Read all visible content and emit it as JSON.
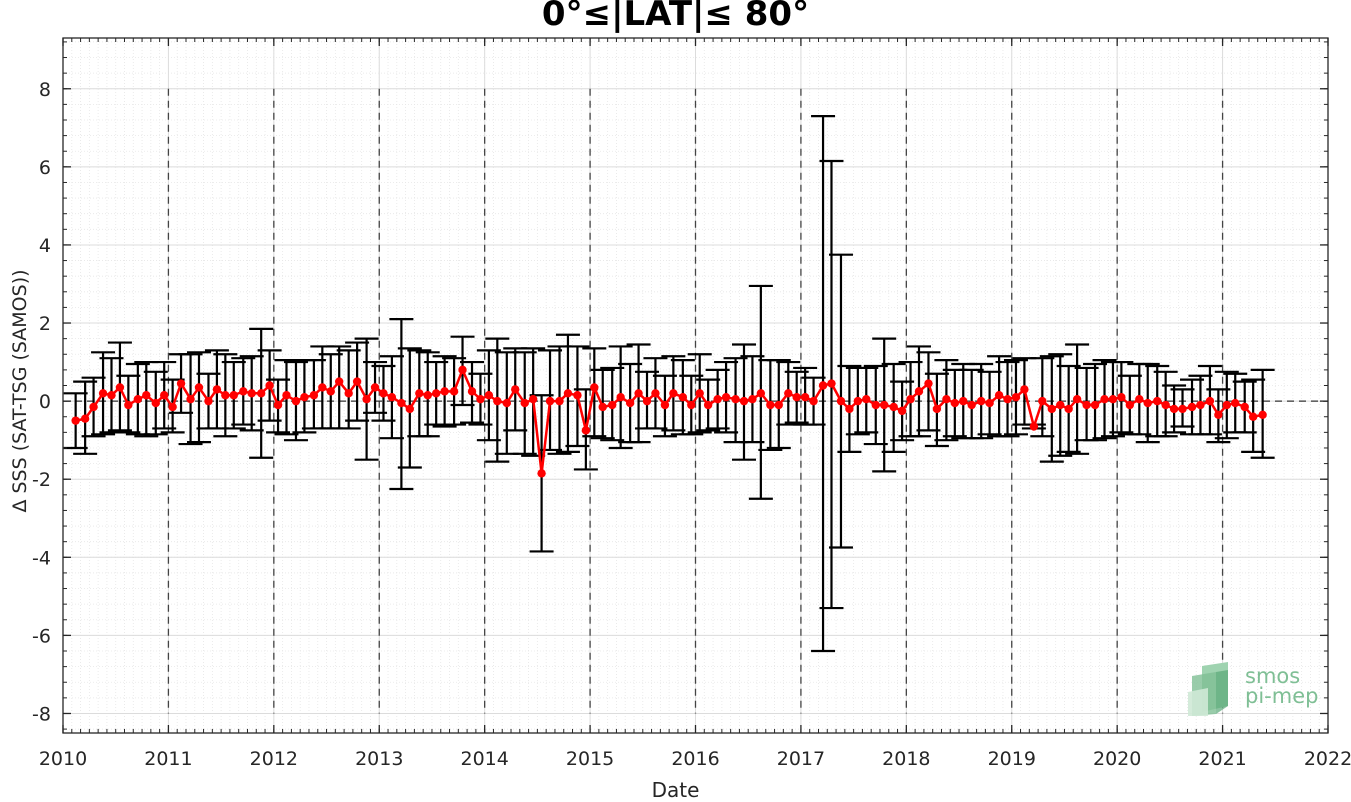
{
  "chart_data": {
    "type": "line",
    "title": "0°≤|LAT|≤ 80°",
    "xlabel": "Date",
    "ylabel": "Δ SSS (SAT-TSG (SAMOS))",
    "xlim": [
      2010,
      2022
    ],
    "ylim": [
      -8.5,
      9.3
    ],
    "xticks": [
      "2010",
      "2011",
      "2012",
      "2013",
      "2014",
      "2015",
      "2016",
      "2017",
      "2018",
      "2019",
      "2020",
      "2021",
      "2022"
    ],
    "yticks": [
      "-8",
      "-6",
      "-4",
      "-2",
      "0",
      "2",
      "4",
      "6",
      "8"
    ],
    "grid": true,
    "minor_grid": true,
    "vertical_year_lines": [
      2011,
      2012,
      2013,
      2014,
      2015,
      2016,
      2017,
      2018,
      2019,
      2020,
      2021
    ],
    "zero_line": true,
    "series": [
      {
        "color": "#ff0000",
        "errorbar_color": "#000000",
        "points": [
          {
            "x": 2010.12,
            "y": -0.5,
            "lo": -1.2,
            "hi": 0.2
          },
          {
            "x": 2010.21,
            "y": -0.45,
            "lo": -1.35,
            "hi": 0.5
          },
          {
            "x": 2010.29,
            "y": -0.15,
            "lo": -0.9,
            "hi": 0.6
          },
          {
            "x": 2010.38,
            "y": 0.2,
            "lo": -0.85,
            "hi": 1.25
          },
          {
            "x": 2010.46,
            "y": 0.15,
            "lo": -0.8,
            "hi": 1.1
          },
          {
            "x": 2010.54,
            "y": 0.35,
            "lo": -0.75,
            "hi": 1.5
          },
          {
            "x": 2010.62,
            "y": -0.1,
            "lo": -0.8,
            "hi": 0.65
          },
          {
            "x": 2010.71,
            "y": 0.05,
            "lo": -0.85,
            "hi": 0.95
          },
          {
            "x": 2010.79,
            "y": 0.15,
            "lo": -0.9,
            "hi": 1.0
          },
          {
            "x": 2010.88,
            "y": -0.05,
            "lo": -0.85,
            "hi": 0.75
          },
          {
            "x": 2010.96,
            "y": 0.15,
            "lo": -0.7,
            "hi": 1.0
          },
          {
            "x": 2011.04,
            "y": -0.15,
            "lo": -0.8,
            "hi": 0.55
          },
          {
            "x": 2011.12,
            "y": 0.45,
            "lo": -0.3,
            "hi": 1.2
          },
          {
            "x": 2011.21,
            "y": 0.05,
            "lo": -1.1,
            "hi": 1.2
          },
          {
            "x": 2011.29,
            "y": 0.35,
            "lo": -1.05,
            "hi": 1.25
          },
          {
            "x": 2011.38,
            "y": 0.0,
            "lo": -0.7,
            "hi": 0.7
          },
          {
            "x": 2011.46,
            "y": 0.3,
            "lo": -0.7,
            "hi": 1.3
          },
          {
            "x": 2011.54,
            "y": 0.15,
            "lo": -0.9,
            "hi": 1.2
          },
          {
            "x": 2011.62,
            "y": 0.15,
            "lo": -0.7,
            "hi": 1.0
          },
          {
            "x": 2011.71,
            "y": 0.25,
            "lo": -0.6,
            "hi": 1.1
          },
          {
            "x": 2011.79,
            "y": 0.2,
            "lo": -0.75,
            "hi": 1.15
          },
          {
            "x": 2011.88,
            "y": 0.2,
            "lo": -1.45,
            "hi": 1.85
          },
          {
            "x": 2011.96,
            "y": 0.4,
            "lo": -0.5,
            "hi": 1.3
          },
          {
            "x": 2012.04,
            "y": -0.1,
            "lo": -0.8,
            "hi": 0.55
          },
          {
            "x": 2012.12,
            "y": 0.15,
            "lo": -0.85,
            "hi": 1.05
          },
          {
            "x": 2012.21,
            "y": 0.0,
            "lo": -1.0,
            "hi": 1.0
          },
          {
            "x": 2012.29,
            "y": 0.1,
            "lo": -0.8,
            "hi": 1.05
          },
          {
            "x": 2012.38,
            "y": 0.15,
            "lo": -0.7,
            "hi": 1.05
          },
          {
            "x": 2012.46,
            "y": 0.35,
            "lo": -0.7,
            "hi": 1.4
          },
          {
            "x": 2012.54,
            "y": 0.25,
            "lo": -0.7,
            "hi": 1.2
          },
          {
            "x": 2012.62,
            "y": 0.5,
            "lo": -0.7,
            "hi": 1.4
          },
          {
            "x": 2012.71,
            "y": 0.2,
            "lo": -0.7,
            "hi": 1.3
          },
          {
            "x": 2012.79,
            "y": 0.5,
            "lo": -0.5,
            "hi": 1.5
          },
          {
            "x": 2012.88,
            "y": 0.05,
            "lo": -1.5,
            "hi": 1.6
          },
          {
            "x": 2012.96,
            "y": 0.35,
            "lo": -0.3,
            "hi": 1.0
          },
          {
            "x": 2013.04,
            "y": 0.2,
            "lo": -0.5,
            "hi": 0.9
          },
          {
            "x": 2013.12,
            "y": 0.1,
            "lo": -0.95,
            "hi": 1.15
          },
          {
            "x": 2013.21,
            "y": -0.05,
            "lo": -2.25,
            "hi": 2.1
          },
          {
            "x": 2013.29,
            "y": -0.2,
            "lo": -1.7,
            "hi": 1.35
          },
          {
            "x": 2013.38,
            "y": 0.2,
            "lo": -0.9,
            "hi": 1.3
          },
          {
            "x": 2013.46,
            "y": 0.15,
            "lo": -0.9,
            "hi": 1.25
          },
          {
            "x": 2013.54,
            "y": 0.2,
            "lo": -0.6,
            "hi": 1.0
          },
          {
            "x": 2013.62,
            "y": 0.25,
            "lo": -0.65,
            "hi": 1.15
          },
          {
            "x": 2013.71,
            "y": 0.25,
            "lo": -0.6,
            "hi": 1.1
          },
          {
            "x": 2013.79,
            "y": 0.8,
            "lo": -0.1,
            "hi": 1.65
          },
          {
            "x": 2013.88,
            "y": 0.25,
            "lo": -0.55,
            "hi": 1.0
          },
          {
            "x": 2013.96,
            "y": 0.05,
            "lo": -0.6,
            "hi": 0.7
          },
          {
            "x": 2014.04,
            "y": 0.15,
            "lo": -1.0,
            "hi": 1.3
          },
          {
            "x": 2014.12,
            "y": 0.0,
            "lo": -1.55,
            "hi": 1.6
          },
          {
            "x": 2014.21,
            "y": -0.05,
            "lo": -1.35,
            "hi": 1.25
          },
          {
            "x": 2014.29,
            "y": 0.3,
            "lo": -0.75,
            "hi": 1.35
          },
          {
            "x": 2014.38,
            "y": -0.05,
            "lo": -1.35,
            "hi": 1.25
          },
          {
            "x": 2014.46,
            "y": 0.05,
            "lo": -1.4,
            "hi": 1.35
          },
          {
            "x": 2014.54,
            "y": -1.85,
            "lo": -3.85,
            "hi": 0.15
          },
          {
            "x": 2014.62,
            "y": 0.0,
            "lo": -1.25,
            "hi": 1.3
          },
          {
            "x": 2014.71,
            "y": 0.0,
            "lo": -1.35,
            "hi": 1.4
          },
          {
            "x": 2014.79,
            "y": 0.2,
            "lo": -1.3,
            "hi": 1.7
          },
          {
            "x": 2014.88,
            "y": 0.15,
            "lo": -1.15,
            "hi": 1.4
          },
          {
            "x": 2014.96,
            "y": -0.75,
            "lo": -1.75,
            "hi": 0.3
          },
          {
            "x": 2015.04,
            "y": 0.35,
            "lo": -0.9,
            "hi": 1.35
          },
          {
            "x": 2015.12,
            "y": -0.15,
            "lo": -0.95,
            "hi": 0.8
          },
          {
            "x": 2015.21,
            "y": -0.1,
            "lo": -1.0,
            "hi": 0.85
          },
          {
            "x": 2015.29,
            "y": 0.1,
            "lo": -1.2,
            "hi": 1.4
          },
          {
            "x": 2015.38,
            "y": -0.05,
            "lo": -1.05,
            "hi": 0.95
          },
          {
            "x": 2015.46,
            "y": 0.2,
            "lo": -1.05,
            "hi": 1.45
          },
          {
            "x": 2015.54,
            "y": 0.0,
            "lo": -0.7,
            "hi": 0.75
          },
          {
            "x": 2015.62,
            "y": 0.2,
            "lo": -0.7,
            "hi": 1.1
          },
          {
            "x": 2015.71,
            "y": -0.1,
            "lo": -0.9,
            "hi": 0.65
          },
          {
            "x": 2015.79,
            "y": 0.2,
            "lo": -0.75,
            "hi": 1.15
          },
          {
            "x": 2015.88,
            "y": 0.1,
            "lo": -0.85,
            "hi": 1.05
          },
          {
            "x": 2015.96,
            "y": -0.1,
            "lo": -0.85,
            "hi": 0.65
          },
          {
            "x": 2016.04,
            "y": 0.2,
            "lo": -0.8,
            "hi": 1.2
          },
          {
            "x": 2016.12,
            "y": -0.1,
            "lo": -0.75,
            "hi": 0.55
          },
          {
            "x": 2016.21,
            "y": 0.05,
            "lo": -0.7,
            "hi": 0.8
          },
          {
            "x": 2016.29,
            "y": 0.1,
            "lo": -0.8,
            "hi": 1.0
          },
          {
            "x": 2016.38,
            "y": 0.05,
            "lo": -1.05,
            "hi": 1.1
          },
          {
            "x": 2016.46,
            "y": 0.0,
            "lo": -1.5,
            "hi": 1.45
          },
          {
            "x": 2016.54,
            "y": 0.05,
            "lo": -1.05,
            "hi": 1.15
          },
          {
            "x": 2016.62,
            "y": 0.2,
            "lo": -2.5,
            "hi": 2.95
          },
          {
            "x": 2016.71,
            "y": -0.1,
            "lo": -1.25,
            "hi": 1.05
          },
          {
            "x": 2016.79,
            "y": -0.1,
            "lo": -1.2,
            "hi": 1.05
          },
          {
            "x": 2016.88,
            "y": 0.2,
            "lo": -0.6,
            "hi": 1.0
          },
          {
            "x": 2016.96,
            "y": 0.1,
            "lo": -0.55,
            "hi": 0.75
          },
          {
            "x": 2017.04,
            "y": 0.1,
            "lo": -0.6,
            "hi": 0.85
          },
          {
            "x": 2017.12,
            "y": 0.0,
            "lo": -0.6,
            "hi": 0.6
          },
          {
            "x": 2017.21,
            "y": 0.4,
            "lo": -6.4,
            "hi": 7.3
          },
          {
            "x": 2017.29,
            "y": 0.45,
            "lo": -5.3,
            "hi": 6.15
          },
          {
            "x": 2017.38,
            "y": 0.0,
            "lo": -3.75,
            "hi": 3.75
          },
          {
            "x": 2017.46,
            "y": -0.2,
            "lo": -1.3,
            "hi": 0.9
          },
          {
            "x": 2017.54,
            "y": 0.0,
            "lo": -0.85,
            "hi": 0.85
          },
          {
            "x": 2017.62,
            "y": 0.05,
            "lo": -0.8,
            "hi": 0.85
          },
          {
            "x": 2017.71,
            "y": -0.1,
            "lo": -1.1,
            "hi": 0.9
          },
          {
            "x": 2017.79,
            "y": -0.1,
            "lo": -1.8,
            "hi": 1.6
          },
          {
            "x": 2017.88,
            "y": -0.15,
            "lo": -1.3,
            "hi": 0.95
          },
          {
            "x": 2017.96,
            "y": -0.25,
            "lo": -1.0,
            "hi": 0.5
          },
          {
            "x": 2018.04,
            "y": 0.05,
            "lo": -0.9,
            "hi": 1.0
          },
          {
            "x": 2018.12,
            "y": 0.25,
            "lo": -0.9,
            "hi": 1.4
          },
          {
            "x": 2018.21,
            "y": 0.45,
            "lo": -0.75,
            "hi": 1.25
          },
          {
            "x": 2018.29,
            "y": -0.2,
            "lo": -1.15,
            "hi": 0.7
          },
          {
            "x": 2018.38,
            "y": 0.05,
            "lo": -1.0,
            "hi": 1.05
          },
          {
            "x": 2018.46,
            "y": -0.05,
            "lo": -0.9,
            "hi": 0.8
          },
          {
            "x": 2018.54,
            "y": 0.0,
            "lo": -0.95,
            "hi": 0.95
          },
          {
            "x": 2018.62,
            "y": -0.1,
            "lo": -0.95,
            "hi": 0.8
          },
          {
            "x": 2018.71,
            "y": 0.0,
            "lo": -0.95,
            "hi": 0.95
          },
          {
            "x": 2018.79,
            "y": -0.05,
            "lo": -0.85,
            "hi": 0.75
          },
          {
            "x": 2018.88,
            "y": 0.15,
            "lo": -0.9,
            "hi": 1.15
          },
          {
            "x": 2018.96,
            "y": 0.05,
            "lo": -0.9,
            "hi": 1.0
          },
          {
            "x": 2019.04,
            "y": 0.1,
            "lo": -0.85,
            "hi": 1.05
          },
          {
            "x": 2019.12,
            "y": 0.3,
            "lo": -0.6,
            "hi": 1.1
          },
          {
            "x": 2019.21,
            "y": -0.65,
            "lo": -0.7,
            "hi": -0.6
          },
          {
            "x": 2019.29,
            "y": 0.0,
            "lo": -0.9,
            "hi": 1.1
          },
          {
            "x": 2019.38,
            "y": -0.2,
            "lo": -1.55,
            "hi": 1.15
          },
          {
            "x": 2019.46,
            "y": -0.1,
            "lo": -1.4,
            "hi": 1.2
          },
          {
            "x": 2019.54,
            "y": -0.2,
            "lo": -1.3,
            "hi": 0.9
          },
          {
            "x": 2019.62,
            "y": 0.05,
            "lo": -1.35,
            "hi": 1.45
          },
          {
            "x": 2019.71,
            "y": -0.1,
            "lo": -1.0,
            "hi": 0.85
          },
          {
            "x": 2019.79,
            "y": -0.1,
            "lo": -1.0,
            "hi": 0.95
          },
          {
            "x": 2019.88,
            "y": 0.05,
            "lo": -0.95,
            "hi": 1.05
          },
          {
            "x": 2019.96,
            "y": 0.05,
            "lo": -0.9,
            "hi": 1.0
          },
          {
            "x": 2020.04,
            "y": 0.1,
            "lo": -0.8,
            "hi": 1.0
          },
          {
            "x": 2020.12,
            "y": -0.1,
            "lo": -0.85,
            "hi": 0.65
          },
          {
            "x": 2020.21,
            "y": 0.05,
            "lo": -0.85,
            "hi": 0.95
          },
          {
            "x": 2020.29,
            "y": -0.05,
            "lo": -1.05,
            "hi": 0.95
          },
          {
            "x": 2020.38,
            "y": 0.0,
            "lo": -0.9,
            "hi": 0.9
          },
          {
            "x": 2020.46,
            "y": -0.1,
            "lo": -0.9,
            "hi": 0.75
          },
          {
            "x": 2020.54,
            "y": -0.2,
            "lo": -0.8,
            "hi": 0.4
          },
          {
            "x": 2020.62,
            "y": -0.2,
            "lo": -0.65,
            "hi": 0.3
          },
          {
            "x": 2020.71,
            "y": -0.15,
            "lo": -0.85,
            "hi": 0.55
          },
          {
            "x": 2020.79,
            "y": -0.1,
            "lo": -0.85,
            "hi": 0.65
          },
          {
            "x": 2020.88,
            "y": 0.0,
            "lo": -0.85,
            "hi": 0.9
          },
          {
            "x": 2020.96,
            "y": -0.35,
            "lo": -1.05,
            "hi": 0.3
          },
          {
            "x": 2021.04,
            "y": -0.1,
            "lo": -0.95,
            "hi": 0.75
          },
          {
            "x": 2021.12,
            "y": -0.05,
            "lo": -0.8,
            "hi": 0.7
          },
          {
            "x": 2021.21,
            "y": -0.15,
            "lo": -0.8,
            "hi": 0.5
          },
          {
            "x": 2021.29,
            "y": -0.4,
            "lo": -1.3,
            "hi": 0.55
          },
          {
            "x": 2021.38,
            "y": -0.35,
            "lo": -1.45,
            "hi": 0.8
          }
        ]
      }
    ]
  },
  "logo": {
    "line1": "smos",
    "line2": "pi-mep"
  }
}
